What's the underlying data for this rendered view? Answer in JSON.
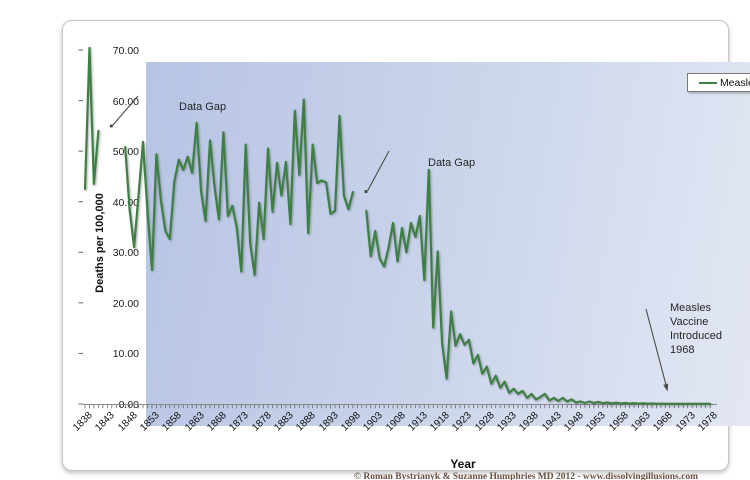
{
  "chart_data": {
    "type": "line",
    "title": "",
    "xlabel": "Year",
    "ylabel": "Deaths per 100,000",
    "ylim": [
      0,
      70
    ],
    "xlim": [
      1838,
      1978
    ],
    "grid": false,
    "ytick_labels": [
      "70.00",
      "60.00",
      "50.00",
      "40.00",
      "30.00",
      "20.00",
      "10.00",
      "0.00"
    ],
    "ytick_values": [
      70,
      60,
      50,
      40,
      30,
      20,
      10,
      0
    ],
    "xtick_labels": [
      "1838",
      "1843",
      "1848",
      "1853",
      "1858",
      "1863",
      "1868",
      "1873",
      "1878",
      "1883",
      "1888",
      "1893",
      "1898",
      "1903",
      "1908",
      "1913",
      "1918",
      "1923",
      "1928",
      "1933",
      "1938",
      "1943",
      "1948",
      "1953",
      "1958",
      "1963",
      "1968",
      "1973",
      "1978"
    ],
    "legend": {
      "position": "top-right",
      "entries": [
        {
          "label": "Measles",
          "color": "#3e7f44"
        }
      ]
    },
    "data_gaps": [
      [
        1842,
        1846
      ],
      [
        1899,
        1900
      ]
    ],
    "annotations": [
      {
        "text": "Data Gap",
        "points_to": "gap 1842-1846"
      },
      {
        "text": "Data Gap",
        "points_to": "gap 1899-1900"
      },
      {
        "text": "Measles Vaccine\nIntroduced 1968",
        "points_to": "year 1968"
      }
    ],
    "series": [
      {
        "name": "Measles",
        "color": "#3e7f44",
        "x_start": 1838,
        "x_end": 1978,
        "values": [
          42.5,
          70.4,
          43.5,
          54.0,
          null,
          null,
          null,
          null,
          null,
          50.8,
          38.5,
          31.0,
          41.5,
          51.8,
          38.0,
          26.5,
          49.4,
          40.2,
          34.2,
          32.6,
          44.0,
          48.3,
          46.3,
          48.9,
          45.7,
          55.6,
          42.0,
          36.2,
          52.1,
          43.0,
          36.5,
          53.7,
          37.2,
          39.2,
          34.8,
          26.2,
          51.3,
          31.8,
          25.5,
          39.8,
          32.6,
          50.5,
          38.0,
          47.7,
          41.2,
          47.9,
          35.6,
          58.0,
          45.3,
          60.2,
          33.8,
          51.3,
          43.7,
          44.2,
          43.8,
          37.6,
          38.2,
          57.0,
          41.2,
          38.5,
          41.9,
          null,
          null,
          38.2,
          29.2,
          34.2,
          28.8,
          27.2,
          31.0,
          35.8,
          28.2,
          34.8,
          30.0,
          35.8,
          33.0,
          37.2,
          24.5,
          46.3,
          15.1,
          30.2,
          12.0,
          5.0,
          18.3,
          11.5,
          13.8,
          11.7,
          12.7,
          8.0,
          9.7,
          6.0,
          7.4,
          4.0,
          5.6,
          3.2,
          4.4,
          2.2,
          3.0,
          2.0,
          2.6,
          1.2,
          2.0,
          0.9,
          1.4,
          2.0,
          0.7,
          1.2,
          0.6,
          1.2,
          0.5,
          0.9,
          0.3,
          0.5,
          0.2,
          0.5,
          0.2,
          0.4,
          0.15,
          0.3,
          0.1,
          0.25,
          0.1,
          0.2,
          0.08,
          0.15,
          0.06,
          0.12,
          0.05,
          0.1,
          0.04,
          0.06,
          0.03,
          0.02,
          0.03,
          0.02,
          0.02,
          0.01,
          0.02,
          0.01,
          0.01,
          0.01,
          0.01
        ]
      }
    ]
  },
  "footer": {
    "copyright": "© Roman Bystrianyk & Suzanne Humphries MD 2012 - www.dissolvingillusions.com"
  },
  "colors": {
    "line_green": "#3e7f44",
    "plot_bg_dark": "#b7c4e4",
    "plot_bg_light": "#e5e9f4",
    "panel_border": "#c6c6c6",
    "copyright_text": "#6b5244"
  }
}
